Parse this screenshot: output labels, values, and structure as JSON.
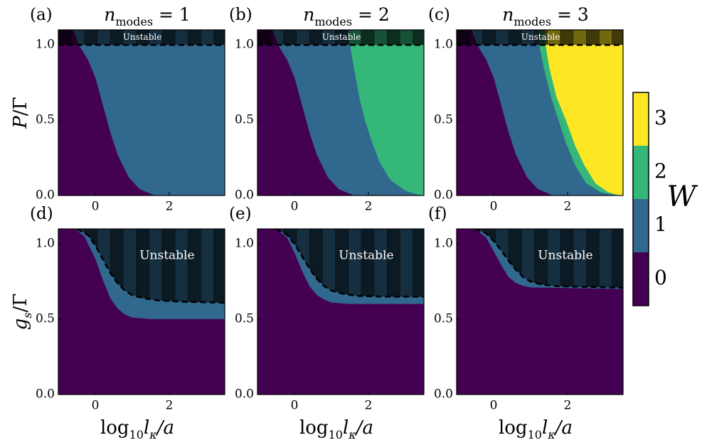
{
  "chart_data": [
    {
      "type": "area",
      "label": "(a)",
      "title": [
        "n",
        "modes",
        " = 1"
      ],
      "ylabel": [
        "P",
        "/Γ"
      ],
      "annotation": "Unstable",
      "xlim": [
        -1,
        3.5
      ],
      "ylim": [
        0,
        1.1
      ],
      "xticks": [
        0,
        2
      ],
      "yticks": [
        {
          "value": 0,
          "label": "0.0"
        },
        {
          "value": 0.5,
          "label": "0.5"
        },
        {
          "value": 1,
          "label": "1.0"
        }
      ],
      "background": "#31688e",
      "series": [
        {
          "color": "#440154",
          "x": [
            -0.6,
            -0.45,
            -0.2,
            0,
            0.2,
            0.4,
            0.6,
            0.9,
            1.2,
            1.6
          ],
          "values": [
            1.1,
            1.0,
            0.9,
            0.78,
            0.6,
            0.42,
            0.27,
            0.12,
            0.04,
            0.0
          ]
        }
      ],
      "stability": {
        "x": [
          -1,
          3.5
        ],
        "values": [
          1,
          1
        ]
      }
    },
    {
      "type": "area",
      "label": "(b)",
      "title": [
        "n",
        "modes",
        " = 2"
      ],
      "annotation": "Unstable",
      "xlim": [
        -1,
        3.5
      ],
      "ylim": [
        0,
        1.1
      ],
      "xticks": [
        0,
        2
      ],
      "yticks": [
        {
          "value": 0,
          "label": "0.0"
        },
        {
          "value": 0.5,
          "label": "0.5"
        },
        {
          "value": 1,
          "label": "1.0"
        }
      ],
      "background": "#35b779",
      "series": [
        {
          "color": "#440154",
          "x": [
            -0.6,
            -0.45,
            -0.2,
            0,
            0.2,
            0.4,
            0.6,
            0.9,
            1.2,
            1.6
          ],
          "values": [
            1.1,
            1.0,
            0.9,
            0.78,
            0.6,
            0.42,
            0.27,
            0.12,
            0.04,
            0.0
          ]
        },
        {
          "color": "#31688e",
          "x": [
            1.45,
            1.5,
            1.6,
            1.75,
            1.9,
            2.1,
            2.3,
            2.6,
            3.0,
            3.4
          ],
          "values": [
            1.1,
            1.0,
            0.85,
            0.65,
            0.5,
            0.35,
            0.22,
            0.1,
            0.03,
            0.0
          ]
        }
      ],
      "stability": {
        "x": [
          -1,
          3.5
        ],
        "values": [
          1,
          1
        ]
      }
    },
    {
      "type": "area",
      "label": "(c)",
      "title": [
        "n",
        "modes",
        " = 3"
      ],
      "annotation": "Unstable",
      "xlim": [
        -1,
        3.5
      ],
      "ylim": [
        0,
        1.1
      ],
      "xticks": [
        0,
        2
      ],
      "yticks": [
        {
          "value": 0,
          "label": "0.0"
        },
        {
          "value": 0.5,
          "label": "0.5"
        },
        {
          "value": 1,
          "label": "1.0"
        }
      ],
      "background": "#fde725",
      "series": [
        {
          "color": "#440154",
          "x": [
            -0.6,
            -0.45,
            -0.2,
            0,
            0.2,
            0.4,
            0.6,
            0.9,
            1.2,
            1.6
          ],
          "values": [
            1.1,
            1.0,
            0.9,
            0.78,
            0.6,
            0.42,
            0.27,
            0.12,
            0.04,
            0.0
          ]
        },
        {
          "color": "#31688e",
          "x": [
            1.2,
            1.23,
            1.35,
            1.55,
            1.75,
            1.95,
            2.2,
            2.5,
            2.9,
            3.3
          ],
          "values": [
            1.1,
            1.0,
            0.85,
            0.65,
            0.5,
            0.35,
            0.2,
            0.08,
            0.02,
            0.0
          ]
        },
        {
          "color": "#35b779",
          "x": [
            1.38,
            1.4,
            1.5,
            1.7,
            1.95,
            2.2,
            2.45,
            2.75,
            3.1,
            3.4
          ],
          "values": [
            1.1,
            1.0,
            0.85,
            0.65,
            0.5,
            0.33,
            0.2,
            0.08,
            0.02,
            0.0
          ]
        }
      ],
      "stability": {
        "x": [
          -1,
          3.5
        ],
        "values": [
          1,
          1
        ]
      }
    },
    {
      "type": "area",
      "label": "(d)",
      "ylabel": [
        "g",
        "s",
        "/Γ"
      ],
      "xlabel": [
        "log",
        "10",
        "l",
        "κ",
        "/a"
      ],
      "annotation": "Unstable",
      "xlim": [
        -1,
        3.5
      ],
      "ylim": [
        0,
        1.1
      ],
      "xticks": [
        0,
        2
      ],
      "yticks": [
        {
          "value": 0,
          "label": "0.0"
        },
        {
          "value": 0.5,
          "label": "0.5"
        },
        {
          "value": 1,
          "label": "1.0"
        }
      ],
      "background": "#31688e",
      "series": [
        {
          "color": "#440154",
          "x": [
            -0.55,
            -0.3,
            0,
            0.2,
            0.4,
            0.6,
            0.8,
            1.0,
            1.5,
            3.5
          ],
          "values": [
            1.1,
            1.05,
            0.9,
            0.76,
            0.64,
            0.57,
            0.53,
            0.51,
            0.5,
            0.5
          ]
        }
      ],
      "stability": {
        "x": [
          -0.5,
          -0.2,
          0,
          0.2,
          0.4,
          0.6,
          0.8,
          1.0,
          1.3,
          1.7,
          2.5,
          3.5
        ],
        "values": [
          1.1,
          1.06,
          0.99,
          0.9,
          0.81,
          0.74,
          0.69,
          0.66,
          0.64,
          0.625,
          0.615,
          0.61
        ]
      }
    },
    {
      "type": "area",
      "label": "(e)",
      "xlabel": [
        "log",
        "10",
        "l",
        "κ",
        "/a"
      ],
      "annotation": "Unstable",
      "xlim": [
        -1,
        3.5
      ],
      "ylim": [
        0,
        1.1
      ],
      "xticks": [
        0,
        2
      ],
      "yticks": [
        {
          "value": 0,
          "label": "0.0"
        },
        {
          "value": 0.5,
          "label": "0.5"
        },
        {
          "value": 1,
          "label": "1.0"
        }
      ],
      "background": "#31688e",
      "series": [
        {
          "color": "#440154",
          "x": [
            -0.5,
            -0.2,
            0,
            0.2,
            0.4,
            0.6,
            0.8,
            1.0,
            1.5,
            3.5
          ],
          "values": [
            1.1,
            1.04,
            0.94,
            0.82,
            0.72,
            0.66,
            0.63,
            0.61,
            0.6,
            0.6
          ]
        }
      ],
      "stability": {
        "x": [
          -0.5,
          -0.2,
          0,
          0.2,
          0.4,
          0.6,
          0.8,
          1.0,
          1.3,
          1.7,
          2.5,
          3.5
        ],
        "values": [
          1.1,
          1.06,
          1.0,
          0.92,
          0.84,
          0.77,
          0.72,
          0.69,
          0.67,
          0.655,
          0.65,
          0.65
        ]
      }
    },
    {
      "type": "area",
      "label": "(f)",
      "xlabel": [
        "log",
        "10",
        "l",
        "κ",
        "/a"
      ],
      "annotation": "Unstable",
      "xlim": [
        -1,
        3.5
      ],
      "ylim": [
        0,
        1.1
      ],
      "xticks": [
        0,
        2
      ],
      "yticks": [
        {
          "value": 0,
          "label": "0.0"
        },
        {
          "value": 0.5,
          "label": "0.5"
        },
        {
          "value": 1,
          "label": "1.0"
        }
      ],
      "background": "#31688e",
      "series": [
        {
          "color": "#440154",
          "x": [
            -0.5,
            -0.2,
            0,
            0.2,
            0.4,
            0.6,
            0.8,
            1.0,
            3.5
          ],
          "values": [
            1.1,
            1.04,
            0.95,
            0.86,
            0.78,
            0.74,
            0.72,
            0.71,
            0.7
          ]
        }
      ],
      "stability": {
        "x": [
          -0.5,
          -0.2,
          0,
          0.2,
          0.4,
          0.6,
          0.8,
          1.0,
          1.3,
          1.7,
          2.5,
          3.5
        ],
        "values": [
          1.1,
          1.07,
          1.02,
          0.96,
          0.89,
          0.83,
          0.78,
          0.75,
          0.73,
          0.72,
          0.715,
          0.71
        ]
      }
    }
  ],
  "colorbar": {
    "label": "W",
    "lim": [
      -0.5,
      3.5
    ],
    "ticks": [
      0,
      1,
      2,
      3
    ],
    "colors": [
      "#440154",
      "#31688e",
      "#35b779",
      "#fde725"
    ]
  }
}
